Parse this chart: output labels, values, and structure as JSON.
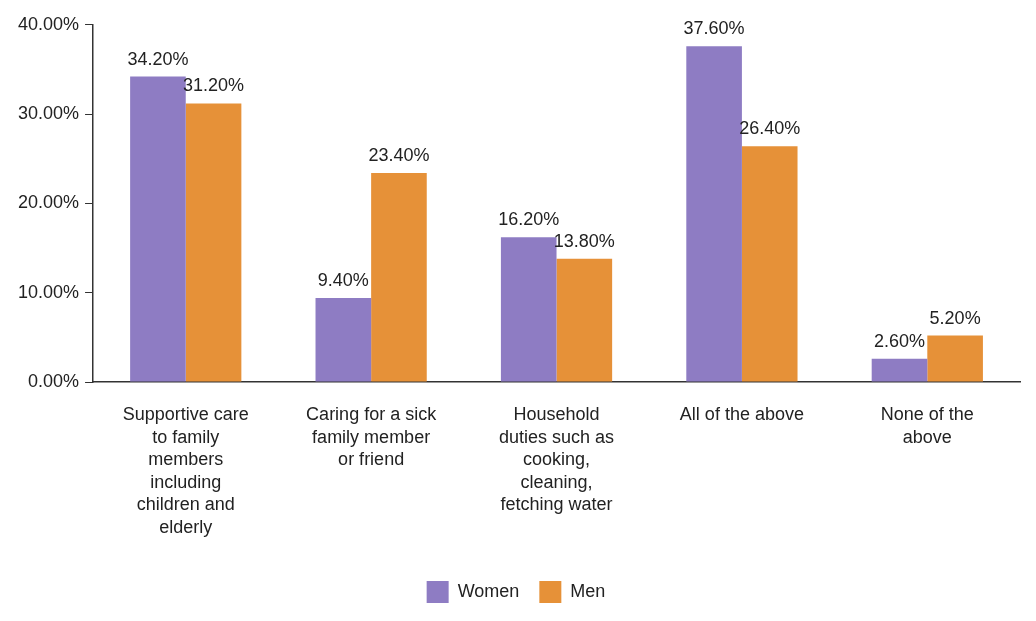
{
  "chart_data": {
    "type": "bar",
    "categories": [
      "Supportive care to family members including children and elderly",
      "Caring for a sick family member or friend",
      "Household duties such as cooking, cleaning, fetching water",
      "All of the above",
      "None of the above"
    ],
    "series": [
      {
        "name": "Women",
        "color": "#8e7cc3",
        "values": [
          34.2,
          9.4,
          16.2,
          37.6,
          2.6
        ],
        "value_labels": [
          "34.20%",
          "9.40%",
          "16.20%",
          "37.60%",
          "2.60%"
        ]
      },
      {
        "name": "Men",
        "color": "#e69138",
        "values": [
          31.2,
          23.4,
          13.8,
          26.4,
          5.2
        ],
        "value_labels": [
          "31.20%",
          "23.40%",
          "13.80%",
          "26.40%",
          "5.20%"
        ]
      }
    ],
    "ylim": [
      0,
      40
    ],
    "yticks": [
      {
        "value": 0,
        "label": "0.00%"
      },
      {
        "value": 10,
        "label": "10.00%"
      },
      {
        "value": 20,
        "label": "20.00%"
      },
      {
        "value": 30,
        "label": "30.00%"
      },
      {
        "value": 40,
        "label": "40.00%"
      }
    ],
    "legend": "bottom"
  }
}
